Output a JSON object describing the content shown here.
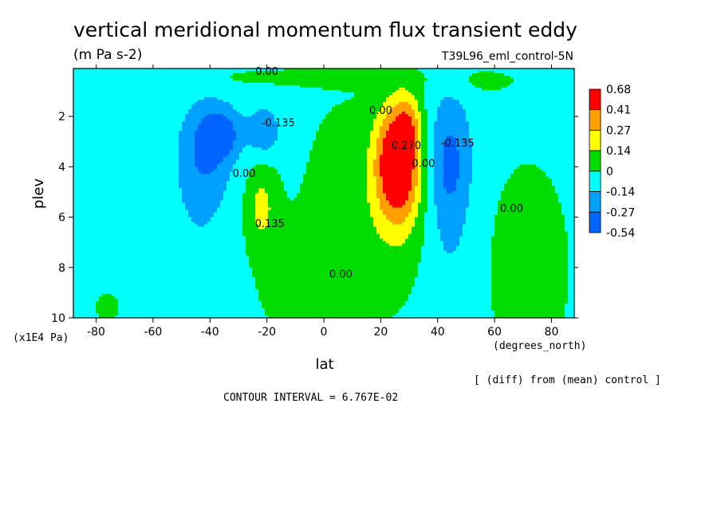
{
  "chart_data": {
    "type": "heatmap",
    "title": "vertical meridional momentum flux transient eddy",
    "subtitle": "(m Pa s-2)",
    "experiment": "T39L96_eml_control-5N",
    "xlabel": "lat",
    "ylabel": "plev",
    "x_units": "(degrees_north)",
    "y_units": "(x1E4 Pa)",
    "xlim": [
      -88,
      88
    ],
    "ylim": [
      10,
      0.1
    ],
    "x_ticks": [
      -80,
      -60,
      -40,
      -20,
      0,
      20,
      40,
      60,
      80
    ],
    "x_tick_labels": [
      "-80",
      "-60",
      "-40",
      "-20",
      "0",
      "20",
      "40",
      "60",
      "80"
    ],
    "y_ticks": [
      2,
      4,
      6,
      8,
      10
    ],
    "y_tick_labels": [
      "2",
      "4",
      "6",
      "8",
      "10"
    ],
    "background_value": -0.05,
    "legend": {
      "placement": "right",
      "levels": [
        "0.68",
        "0.41",
        "0.27",
        "0.14",
        "0",
        "-0.14",
        "-0.27",
        "-0.54"
      ],
      "colors": [
        "#ff0000",
        "#ffa000",
        "#ffff00",
        "#00dc00",
        "#00ffff",
        "#00a0ff",
        "#0064ff"
      ],
      "thresholds": [
        0.41,
        0.27,
        0.14,
        0,
        -0.14,
        -0.27,
        -0.54
      ]
    },
    "features": [
      {
        "lat": 26,
        "plev": 3.8,
        "value": 0.62,
        "sx": 5.5,
        "sy": 1.6
      },
      {
        "lat": 30,
        "plev": 2.2,
        "value": 0.18,
        "sx": 3.0,
        "sy": 0.8
      },
      {
        "lat": 26,
        "plev": 5.5,
        "value": 0.12,
        "sx": 8.5,
        "sy": 2.6
      },
      {
        "lat": -22,
        "plev": 5.6,
        "value": 0.22,
        "sx": 4.0,
        "sy": 1.2
      },
      {
        "lat": -36,
        "plev": 2.7,
        "value": -0.26,
        "sx": 5.0,
        "sy": 0.7
      },
      {
        "lat": -21,
        "plev": 2.6,
        "value": -0.21,
        "sx": 4.0,
        "sy": 0.7
      },
      {
        "lat": -42,
        "plev": 3.5,
        "value": -0.2,
        "sx": 6.5,
        "sy": 1.5
      },
      {
        "lat": 44,
        "plev": 3.6,
        "value": -0.23,
        "sx": 5.5,
        "sy": 1.8
      },
      {
        "lat": 44,
        "plev": 6.5,
        "value": -0.09,
        "sx": 6.0,
        "sy": 2.5
      },
      {
        "lat": -44,
        "plev": 6.8,
        "value": -0.06,
        "sx": 8.0,
        "sy": 2.8
      },
      {
        "lat": 6,
        "plev": 6.0,
        "value": 0.09,
        "sx": 12.0,
        "sy": 4.0
      },
      {
        "lat": -8,
        "plev": 8.8,
        "value": 0.08,
        "sx": 14.0,
        "sy": 1.8
      },
      {
        "lat": 72,
        "plev": 8.0,
        "value": 0.1,
        "sx": 12.0,
        "sy": 3.5
      },
      {
        "lat": -76,
        "plev": 9.6,
        "value": 0.08,
        "sx": 4.0,
        "sy": 0.6
      },
      {
        "lat": -8,
        "plev": 0.45,
        "value": 0.09,
        "sx": 30.0,
        "sy": 0.25
      },
      {
        "lat": 55,
        "plev": 0.6,
        "value": 0.07,
        "sx": 10.0,
        "sy": 0.4
      }
    ],
    "contour_labels": [
      {
        "text": "0.00",
        "lat": -20,
        "plev": 0.35
      },
      {
        "text": "-0.135",
        "lat": -16,
        "plev": 2.4
      },
      {
        "text": "0.00",
        "lat": -28,
        "plev": 4.4
      },
      {
        "text": "0.135",
        "lat": -19,
        "plev": 6.4
      },
      {
        "text": "0.00",
        "lat": 20,
        "plev": 1.9
      },
      {
        "text": "0.270",
        "lat": 29,
        "plev": 3.3
      },
      {
        "text": "0.00",
        "lat": 35,
        "plev": 4.0
      },
      {
        "text": "-0.135",
        "lat": 47,
        "plev": 3.2
      },
      {
        "text": "0.00",
        "lat": 66,
        "plev": 5.8
      },
      {
        "text": "0.00",
        "lat": 6,
        "plev": 8.4
      }
    ]
  },
  "footer": {
    "diff_note": "[ (diff) from (mean) control ]",
    "contour_interval": "CONTOUR INTERVAL = 6.767E-02"
  }
}
